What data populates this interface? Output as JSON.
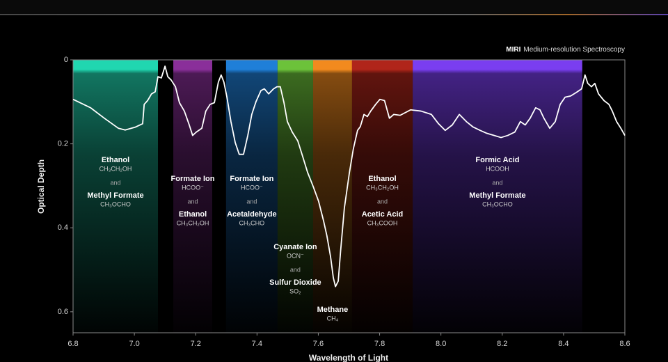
{
  "chart_data": {
    "type": "line",
    "title_bold": "MIRI",
    "title": "Medium-resolution Spectroscopy",
    "xlabel": "Wavelength of Light",
    "ylabel": "Optical Depth",
    "xlim": [
      6.8,
      8.6
    ],
    "ylim": [
      0,
      0.65
    ],
    "y_inverted": true,
    "xticks": [
      6.8,
      {
        "value": 7,
        "label": "7.0"
      },
      7.2,
      7.4,
      7.6,
      7.8,
      {
        "value": 8,
        "label": "8.0"
      },
      8.2,
      8.4,
      8.6
    ],
    "yticks": [
      0,
      0.2,
      0.4,
      0.6
    ],
    "bands": [
      {
        "x": [
          6.8,
          7.077
        ],
        "color": "#20d6b0",
        "label": [
          "Ethanol",
          "CH₃CH₂OH",
          "and",
          "Methyl Formate",
          "CH₃OCHO"
        ]
      },
      {
        "x": [
          7.127,
          7.254
        ],
        "color": "#8a2f9a",
        "label": [
          "Formate Ion",
          "HCOO⁻",
          "and",
          "Ethanol",
          "CH₃CH₂OH"
        ]
      },
      {
        "x": [
          7.299,
          7.467
        ],
        "color": "#1f7fd8",
        "label": [
          "Formate Ion",
          "HCOO⁻",
          "and",
          "Acetaldehyde",
          "CH₃CHO"
        ]
      },
      {
        "x": [
          7.467,
          7.583
        ],
        "color": "#6cc23a",
        "label": [
          "Cyanate Ion",
          "OCN⁻",
          "and",
          "Sulfur Dioxide",
          "SO₂"
        ]
      },
      {
        "x": [
          7.583,
          7.71
        ],
        "color": "#f28a1e",
        "label": [
          "Methane",
          "CH₄"
        ]
      },
      {
        "x": [
          7.71,
          7.908
        ],
        "color": "#b0251a",
        "label": [
          "Ethanol",
          "CH₃CH₂OH",
          "and",
          "Acetic Acid",
          "CH₃COOH"
        ]
      },
      {
        "x": [
          7.908,
          8.461
        ],
        "color": "#7a3ef0",
        "label": [
          "Formic Acid",
          "HCOOH",
          "and",
          "Methyl Formate",
          "CH₃OCHO"
        ]
      }
    ],
    "x": [
      6.8,
      6.857,
      6.902,
      6.948,
      6.97,
      7.004,
      7.027,
      7.032,
      7.043,
      7.056,
      7.068,
      7.077,
      7.088,
      7.1,
      7.109,
      7.12,
      7.134,
      7.147,
      7.163,
      7.179,
      7.19,
      7.202,
      7.22,
      7.233,
      7.247,
      7.261,
      7.274,
      7.283,
      7.292,
      7.302,
      7.315,
      7.329,
      7.342,
      7.356,
      7.37,
      7.383,
      7.397,
      7.413,
      7.424,
      7.438,
      7.454,
      7.465,
      7.476,
      7.488,
      7.499,
      7.515,
      7.533,
      7.549,
      7.565,
      7.583,
      7.601,
      7.617,
      7.628,
      7.64,
      7.649,
      7.656,
      7.665,
      7.673,
      7.685,
      7.701,
      7.714,
      7.728,
      7.737,
      7.749,
      7.76,
      7.771,
      7.787,
      7.801,
      7.816,
      7.832,
      7.846,
      7.867,
      7.901,
      7.935,
      7.969,
      7.992,
      8.014,
      8.037,
      8.06,
      8.083,
      8.105,
      8.128,
      8.15,
      8.173,
      8.196,
      8.218,
      8.241,
      8.259,
      8.275,
      8.291,
      8.309,
      8.323,
      8.336,
      8.355,
      8.373,
      8.389,
      8.405,
      8.423,
      8.441,
      8.459,
      8.47,
      8.479,
      8.491,
      8.502,
      8.514,
      8.532,
      8.548,
      8.559,
      8.573,
      8.587,
      8.6
    ],
    "series": [
      {
        "color": "#ffffff",
        "values": [
          0.094,
          0.114,
          0.139,
          0.163,
          0.167,
          0.16,
          0.152,
          0.106,
          0.097,
          0.081,
          0.076,
          0.04,
          0.043,
          0.015,
          0.04,
          0.048,
          0.064,
          0.102,
          0.122,
          0.155,
          0.18,
          0.172,
          0.163,
          0.122,
          0.106,
          0.102,
          0.053,
          0.036,
          0.053,
          0.089,
          0.147,
          0.197,
          0.225,
          0.225,
          0.18,
          0.13,
          0.099,
          0.073,
          0.069,
          0.081,
          0.069,
          0.064,
          0.064,
          0.102,
          0.147,
          0.172,
          0.193,
          0.23,
          0.268,
          0.301,
          0.337,
          0.383,
          0.419,
          0.469,
          0.519,
          0.54,
          0.527,
          0.453,
          0.353,
          0.271,
          0.213,
          0.168,
          0.159,
          0.13,
          0.135,
          0.122,
          0.106,
          0.094,
          0.097,
          0.139,
          0.13,
          0.132,
          0.119,
          0.122,
          0.13,
          0.152,
          0.168,
          0.155,
          0.13,
          0.147,
          0.16,
          0.168,
          0.175,
          0.18,
          0.185,
          0.18,
          0.172,
          0.147,
          0.155,
          0.139,
          0.114,
          0.119,
          0.139,
          0.163,
          0.147,
          0.106,
          0.089,
          0.086,
          0.078,
          0.069,
          0.036,
          0.056,
          0.064,
          0.056,
          0.081,
          0.097,
          0.106,
          0.122,
          0.147,
          0.163,
          0.18
        ]
      }
    ]
  }
}
